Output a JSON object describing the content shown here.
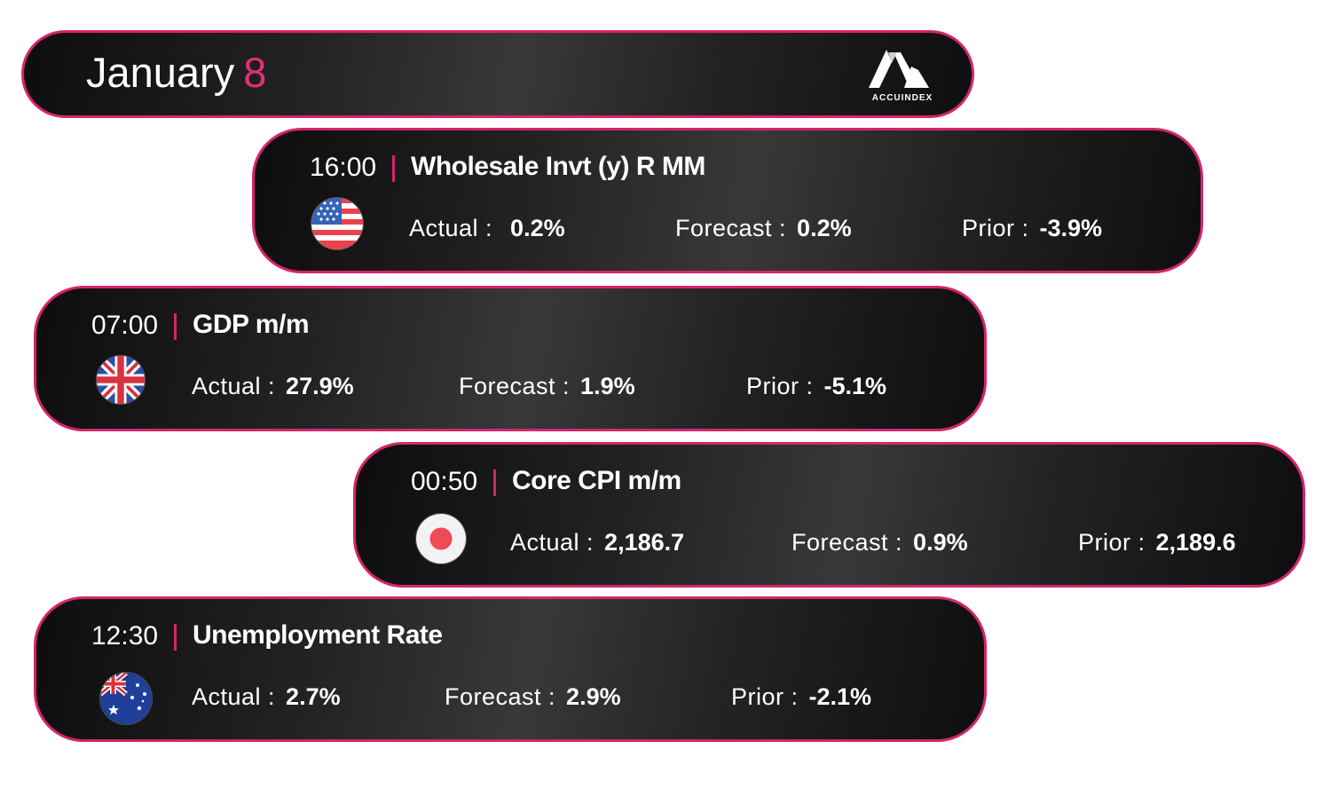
{
  "header": {
    "month": "January",
    "day": "8",
    "brand": "ACCUINDEX"
  },
  "colors": {
    "accent": "#d6246e",
    "card_dark": "#0d0d0d",
    "card_light": "#383838",
    "text": "#ffffff"
  },
  "events": [
    {
      "time": "16:00",
      "title": "Wholesale Invt (y) R MM",
      "flag": "us-flag-icon",
      "actual_label": "Actual :",
      "actual": "0.2%",
      "forecast_label": "Forecast :",
      "forecast": "0.2%",
      "prior_label": "Prior :",
      "prior": "-3.9%"
    },
    {
      "time": "07:00",
      "title": "GDP m/m",
      "flag": "uk-flag-icon",
      "actual_label": "Actual :",
      "actual": "27.9%",
      "forecast_label": "Forecast :",
      "forecast": "1.9%",
      "prior_label": "Prior :",
      "prior": "-5.1%"
    },
    {
      "time": "00:50",
      "title": "Core CPI m/m",
      "flag": "japan-flag-icon",
      "actual_label": "Actual :",
      "actual": "2,186.7",
      "forecast_label": "Forecast :",
      "forecast": "0.9%",
      "prior_label": "Prior :",
      "prior": "2,189.6"
    },
    {
      "time": "12:30",
      "title": "Unemployment Rate",
      "flag": "australia-flag-icon",
      "actual_label": "Actual :",
      "actual": "2.7%",
      "forecast_label": "Forecast :",
      "forecast": "2.9%",
      "prior_label": "Prior :",
      "prior": "-2.1%"
    }
  ]
}
